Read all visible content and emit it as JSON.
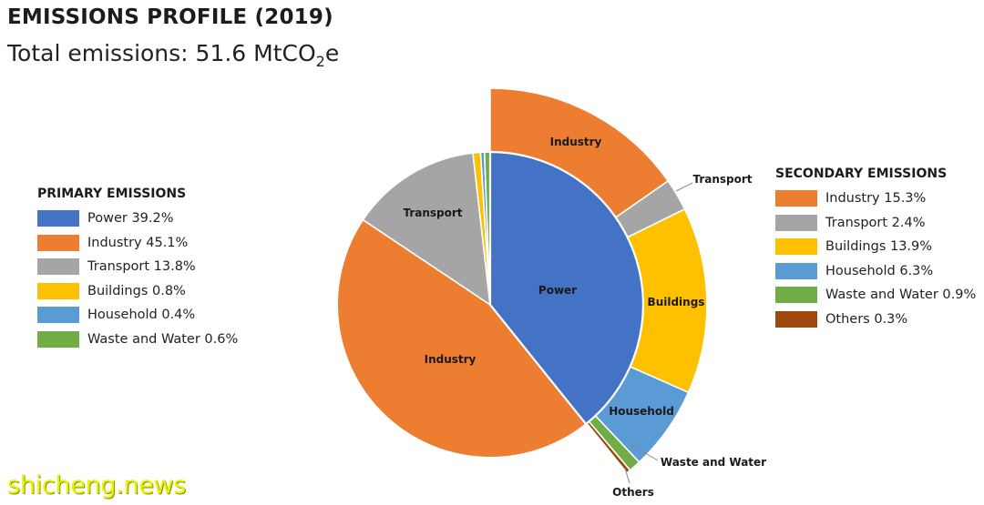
{
  "header": {
    "title": "EMISSIONS PROFILE (2019)",
    "subtitle_prefix": "Total emissions: 51.6 MtCO",
    "subtitle_sub": "2",
    "subtitle_suffix": "e"
  },
  "chart_data": {
    "type": "pie",
    "title": "EMISSIONS PROFILE (2019)",
    "subtitle": "Total emissions: 51.6 MtCO2e",
    "series": [
      {
        "name": "PRIMARY EMISSIONS",
        "slices": [
          {
            "label": "Power",
            "value": 39.2,
            "legend": "Power 39.2%",
            "color": "#4472c4",
            "slice_label": "Power"
          },
          {
            "label": "Industry",
            "value": 45.1,
            "legend": "Industry 45.1%",
            "color": "#ed7d31",
            "slice_label": "Industry"
          },
          {
            "label": "Transport",
            "value": 13.8,
            "legend": "Transport 13.8%",
            "color": "#a5a5a5",
            "slice_label": "Transport"
          },
          {
            "label": "Buildings",
            "value": 0.8,
            "legend": "Buildings 0.8%",
            "color": "#ffc000",
            "slice_label": ""
          },
          {
            "label": "Household",
            "value": 0.4,
            "legend": "Household 0.4%",
            "color": "#5b9bd5",
            "slice_label": ""
          },
          {
            "label": "Waste and Water",
            "value": 0.6,
            "legend": "Waste and Water 0.6%",
            "color": "#70ad47",
            "slice_label": ""
          }
        ]
      },
      {
        "name": "SECONDARY EMISSIONS",
        "slices": [
          {
            "label": "Industry",
            "value": 15.3,
            "legend": "Industry 15.3%",
            "color": "#ed7d31",
            "slice_label": "Industry"
          },
          {
            "label": "Transport",
            "value": 2.4,
            "legend": "Transport 2.4%",
            "color": "#a5a5a5",
            "slice_label": "Transport"
          },
          {
            "label": "Buildings",
            "value": 13.9,
            "legend": "Buildings 13.9%",
            "color": "#ffc000",
            "slice_label": "Buildings"
          },
          {
            "label": "Household",
            "value": 6.3,
            "legend": "Household 6.3%",
            "color": "#5b9bd5",
            "slice_label": "Household"
          },
          {
            "label": "Waste and Water",
            "value": 0.9,
            "legend": "Waste and Water 0.9%",
            "color": "#70ad47",
            "slice_label": "Waste and Water"
          },
          {
            "label": "Others",
            "value": 0.3,
            "legend": "Others 0.3%",
            "color": "#9e480e",
            "slice_label": "Others"
          }
        ]
      }
    ],
    "legend_placement": [
      "left",
      "right"
    ],
    "grid": false
  },
  "watermark": "shicheng.news"
}
